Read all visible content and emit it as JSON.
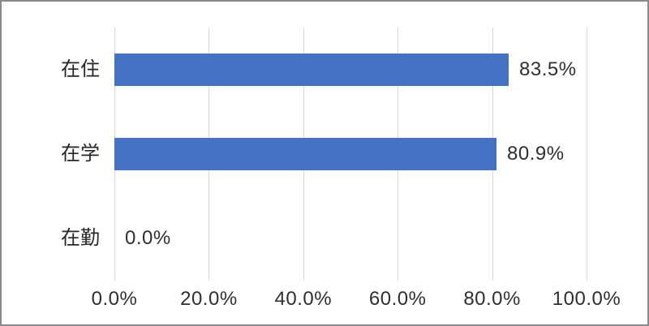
{
  "chart_data": {
    "type": "bar",
    "orientation": "horizontal",
    "categories": [
      "在住",
      "在学",
      "在勤"
    ],
    "values": [
      83.5,
      80.9,
      0.0
    ],
    "data_labels": [
      "83.5%",
      "80.9%",
      "0.0%"
    ],
    "x_ticks": [
      "0.0%",
      "20.0%",
      "40.0%",
      "60.0%",
      "80.0%",
      "100.0%"
    ],
    "x_tick_values": [
      0,
      20,
      40,
      60,
      80,
      100
    ],
    "xlim": [
      0,
      100
    ],
    "grid": "vertical-only",
    "legend": "none",
    "colors": {
      "bar": "#4472c4",
      "gridline": "#d9d9d9",
      "text": "#262626",
      "frame_border": "#8a8a8e",
      "background": "#ffffff"
    }
  }
}
